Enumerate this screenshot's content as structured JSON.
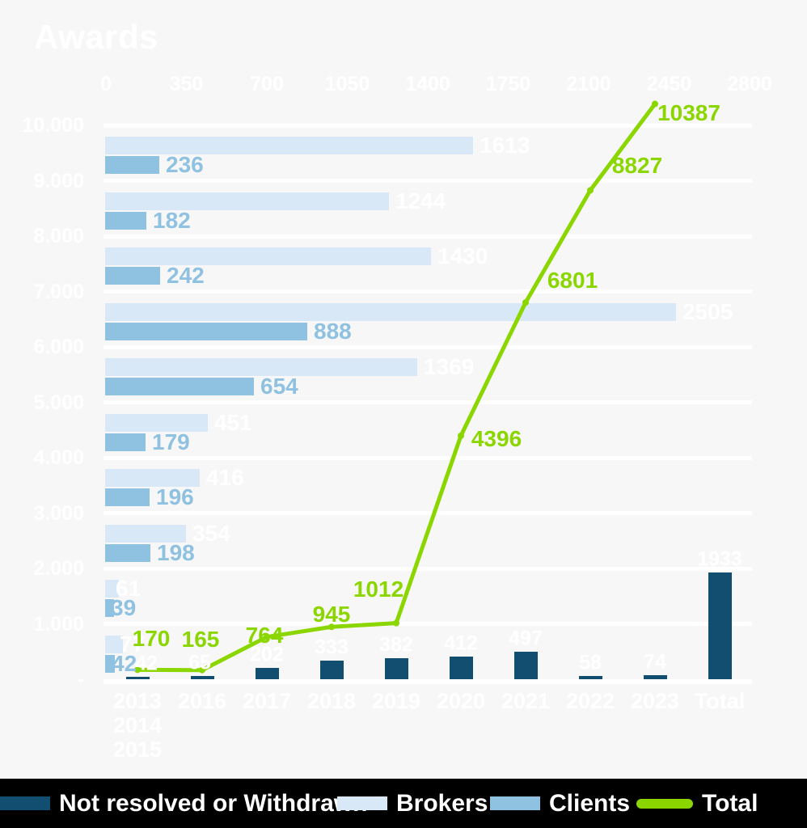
{
  "title": "Awards",
  "colors": {
    "background": "#f7f7f7",
    "grid": "#ffffff",
    "axis_text": "#ffffff",
    "not_resolved": "#124e70",
    "brokers": "#d9e8f6",
    "clients": "#8fc1e1",
    "total": "#8cd600",
    "brokers_label": "#ffffff",
    "clients_label": "#8fc1e1",
    "legend_bg": "#000000",
    "legend_text": "#ffffff"
  },
  "chart_data": {
    "type": "combo",
    "title": "Awards",
    "grid": true,
    "legend_position": "bottom",
    "categories": [
      "2013 2014 2015",
      "2016",
      "2017",
      "2018",
      "2019",
      "2020",
      "2021",
      "2022",
      "2023",
      "Total"
    ],
    "category_label_lines": [
      [
        "2013",
        "2014",
        "2015"
      ],
      [
        "2016"
      ],
      [
        "2017"
      ],
      [
        "2018"
      ],
      [
        "2019"
      ],
      [
        "2020"
      ],
      [
        "2021"
      ],
      [
        "2022"
      ],
      [
        "2023"
      ],
      [
        "Total"
      ]
    ],
    "value_axis_left": {
      "tick_labels": [
        "10.000",
        "9.000",
        "8.000",
        "7.000",
        "6.000",
        "5.000",
        "4.000",
        "3.000",
        "2.000",
        "1.000",
        "-"
      ],
      "tick_values": [
        10000,
        9000,
        8000,
        7000,
        6000,
        5000,
        4000,
        3000,
        2000,
        1000,
        0
      ],
      "min": 0,
      "max": 10000
    },
    "value_axis_top": {
      "tick_labels": [
        "0",
        "350",
        "700",
        "1050",
        "1400",
        "1750",
        "2100",
        "2450",
        "2800"
      ],
      "tick_values": [
        0,
        350,
        700,
        1050,
        1400,
        1750,
        2100,
        2450,
        2800
      ],
      "min": 0,
      "max": 2800
    },
    "series": [
      {
        "name": "Brokers",
        "type": "bar-horizontal",
        "color_key": "brokers",
        "values": [
          77,
          61,
          354,
          416,
          451,
          1369,
          2505,
          1430,
          1244,
          1613
        ]
      },
      {
        "name": "Clients",
        "type": "bar-horizontal",
        "color_key": "clients",
        "values": [
          42,
          39,
          198,
          196,
          179,
          654,
          888,
          242,
          182,
          236
        ]
      },
      {
        "name": "Not resolved or Withdrawn",
        "type": "bar-vertical",
        "color_key": "not_resolved",
        "values": [
          42,
          65,
          202,
          333,
          382,
          412,
          497,
          58,
          74,
          1933
        ]
      },
      {
        "name": "Total",
        "type": "line",
        "color_key": "total",
        "values": [
          170,
          165,
          764,
          945,
          1012,
          4396,
          6801,
          8827,
          10387,
          null
        ]
      }
    ]
  },
  "legend": {
    "items": [
      {
        "label": "Not resolved or Withdrawn",
        "swatch": "rect",
        "color_key": "not_resolved"
      },
      {
        "label": "Brokers",
        "swatch": "rect",
        "color_key": "brokers"
      },
      {
        "label": "Clients",
        "swatch": "rect",
        "color_key": "clients"
      },
      {
        "label": "Total",
        "swatch": "line",
        "color_key": "total"
      }
    ]
  }
}
